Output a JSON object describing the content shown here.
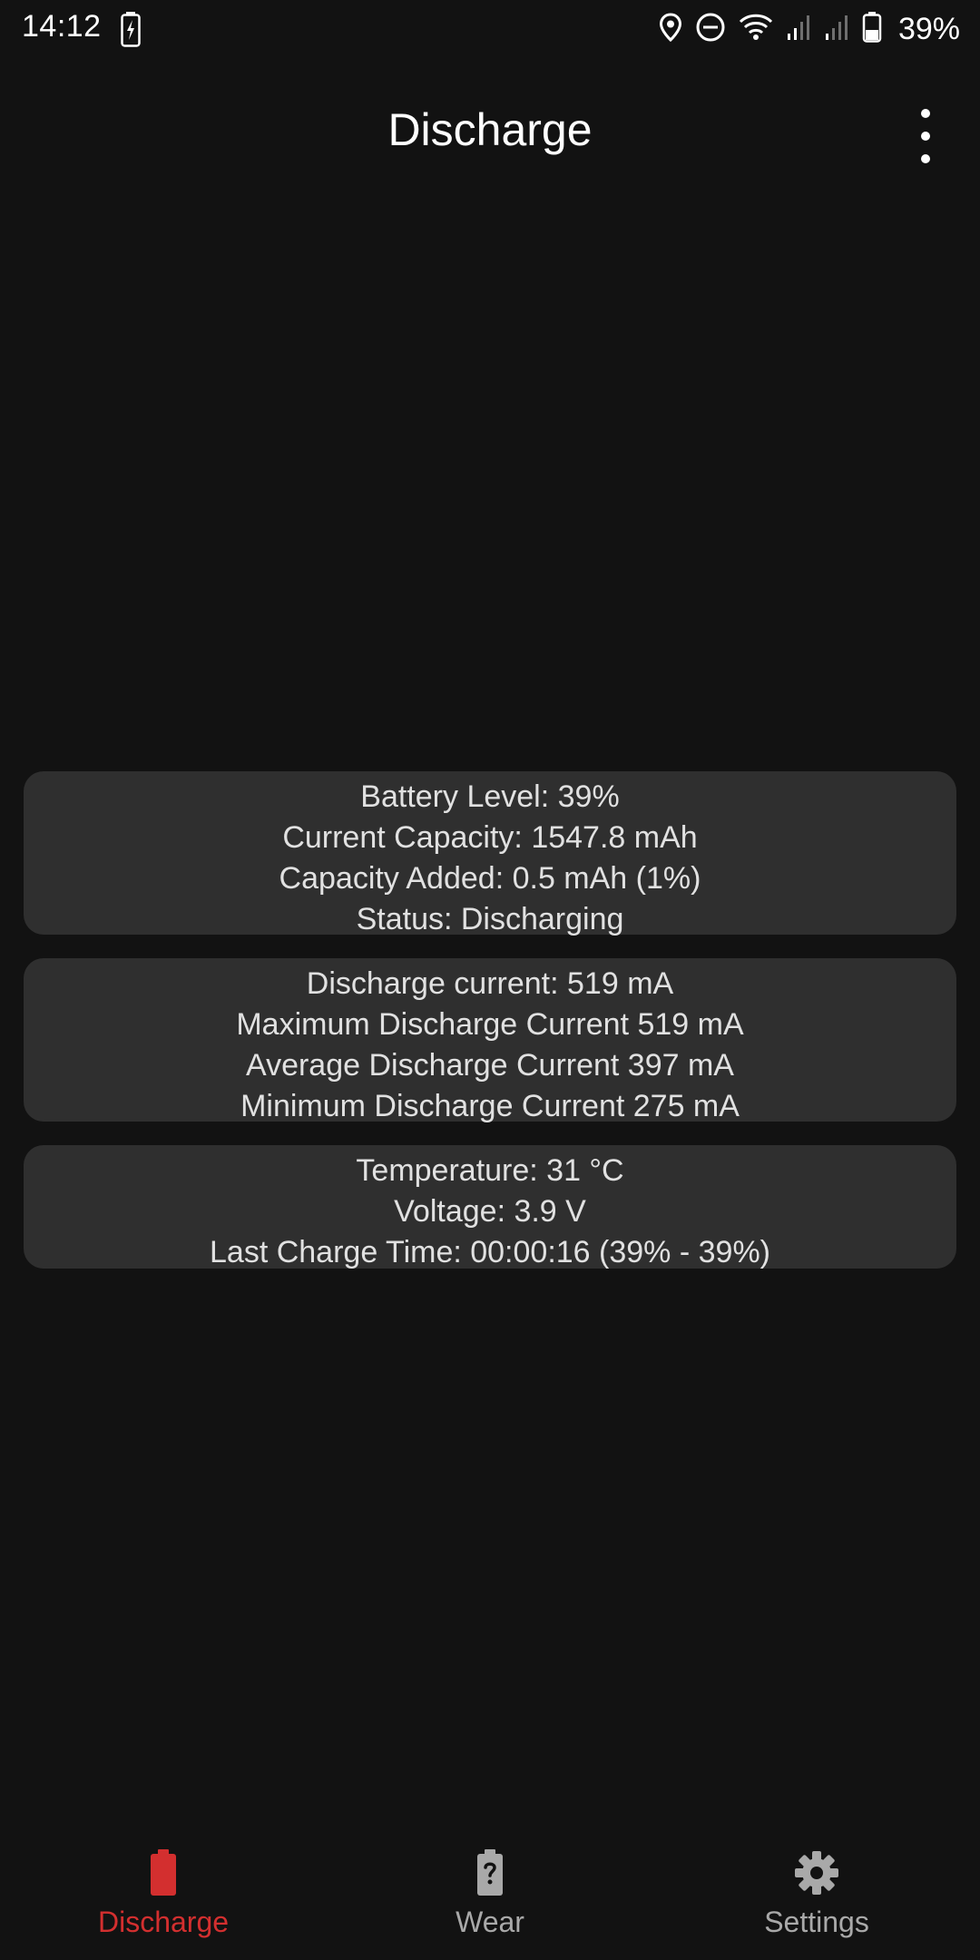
{
  "status_bar": {
    "time": "14:12",
    "battery_percent": "39%",
    "icons": [
      "charging-battery-icon",
      "location-icon",
      "do-not-disturb-icon",
      "wifi-icon",
      "signal-icon",
      "signal-icon",
      "battery-icon"
    ]
  },
  "app_bar": {
    "title": "Discharge",
    "menu_icon": "more-vert-icon"
  },
  "battery_card": {
    "battery_level": "Battery Level: 39%",
    "current_capacity": "Current Capacity: 1547.8 mAh",
    "capacity_added": "Capacity Added: 0.5 mAh (1%)",
    "status": "Status: Discharging"
  },
  "current_card": {
    "discharge_current": "Discharge current: 519 mA",
    "max_current": "Maximum Discharge Current 519 mA",
    "avg_current": "Average Discharge Current 397 mA",
    "min_current": "Minimum Discharge Current 275 mA"
  },
  "temp_card": {
    "temperature": "Temperature: 31 °C",
    "voltage": "Voltage: 3.9 V",
    "last_charge_time": "Last Charge Time: 00:00:16 (39% - 39%)"
  },
  "bottom_nav": {
    "items": [
      {
        "label": "Discharge",
        "icon": "battery-icon",
        "active": true
      },
      {
        "label": "Wear",
        "icon": "battery-unknown-icon",
        "active": false
      },
      {
        "label": "Settings",
        "icon": "gear-icon",
        "active": false
      }
    ]
  },
  "colors": {
    "background": "#121212",
    "card": "#2f2f2f",
    "accent": "#d32f2f",
    "inactive": "#a9a9a9"
  }
}
